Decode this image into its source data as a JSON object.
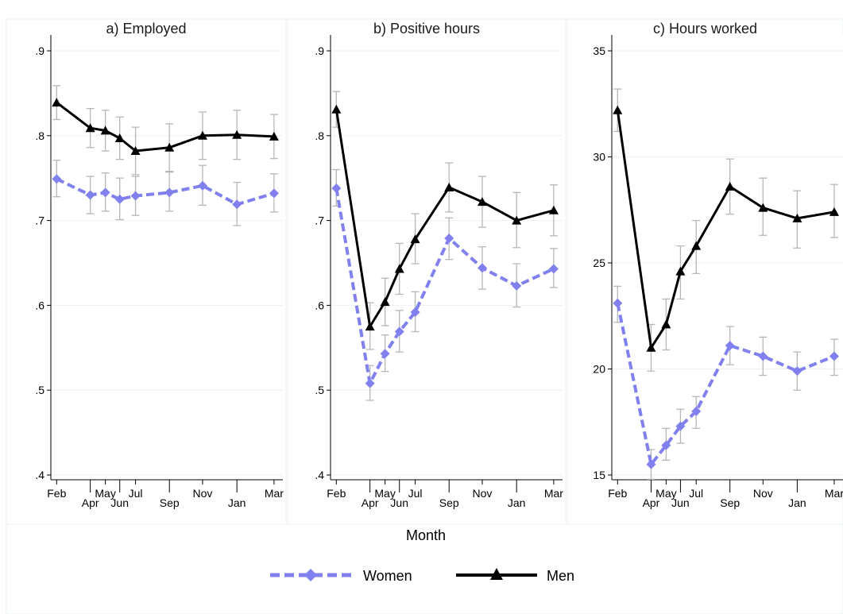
{
  "figure": {
    "xlabel": "Month",
    "legend": [
      {
        "name": "Women",
        "color": "#8080ee",
        "marker": "diamond",
        "line": "dashed"
      },
      {
        "name": "Men",
        "color": "#000000",
        "marker": "triangle",
        "line": "solid"
      }
    ]
  },
  "chart_data": [
    {
      "type": "line",
      "title": "a) Employed",
      "x": [
        "Feb",
        "Apr",
        "May",
        "Jun",
        "Jul",
        "Sep",
        "Nov",
        "Jan",
        "Mar"
      ],
      "ylim": [
        0.4,
        0.9
      ],
      "yticks": [
        0.4,
        0.5,
        0.6,
        0.7,
        0.8,
        0.9
      ],
      "ytick_labels": [
        ".4",
        ".5",
        ".6",
        ".7",
        ".8",
        ".9"
      ],
      "grid": true,
      "series": [
        {
          "name": "Women",
          "values": [
            0.749,
            0.73,
            0.733,
            0.725,
            0.729,
            0.733,
            0.741,
            0.719,
            0.732
          ],
          "ci_low": [
            0.728,
            0.708,
            0.711,
            0.701,
            0.706,
            0.711,
            0.718,
            0.694,
            0.71
          ],
          "ci_high": [
            0.771,
            0.752,
            0.756,
            0.75,
            0.752,
            0.757,
            0.765,
            0.745,
            0.755
          ]
        },
        {
          "name": "Men",
          "values": [
            0.839,
            0.809,
            0.806,
            0.797,
            0.782,
            0.786,
            0.8,
            0.801,
            0.799
          ],
          "ci_low": [
            0.819,
            0.786,
            0.782,
            0.772,
            0.754,
            0.758,
            0.772,
            0.772,
            0.773
          ],
          "ci_high": [
            0.859,
            0.832,
            0.83,
            0.822,
            0.81,
            0.814,
            0.828,
            0.83,
            0.825
          ]
        }
      ]
    },
    {
      "type": "line",
      "title": "b) Positive hours",
      "x": [
        "Feb",
        "Apr",
        "May",
        "Jun",
        "Jul",
        "Sep",
        "Nov",
        "Jan",
        "Mar"
      ],
      "ylim": [
        0.4,
        0.9
      ],
      "yticks": [
        0.4,
        0.5,
        0.6,
        0.7,
        0.8,
        0.9
      ],
      "ytick_labels": [
        ".4",
        ".5",
        ".6",
        ".7",
        ".8",
        ".9"
      ],
      "grid": true,
      "series": [
        {
          "name": "Women",
          "values": [
            0.738,
            0.508,
            0.543,
            0.569,
            0.592,
            0.679,
            0.644,
            0.623,
            0.643
          ],
          "ci_low": [
            0.717,
            0.488,
            0.522,
            0.545,
            0.569,
            0.654,
            0.619,
            0.598,
            0.621
          ],
          "ci_high": [
            0.76,
            0.529,
            0.565,
            0.594,
            0.616,
            0.703,
            0.669,
            0.649,
            0.667
          ]
        },
        {
          "name": "Men",
          "values": [
            0.831,
            0.575,
            0.604,
            0.643,
            0.678,
            0.739,
            0.722,
            0.7,
            0.712
          ],
          "ci_low": [
            0.81,
            0.548,
            0.576,
            0.613,
            0.649,
            0.71,
            0.692,
            0.668,
            0.682
          ],
          "ci_high": [
            0.852,
            0.603,
            0.632,
            0.673,
            0.708,
            0.768,
            0.752,
            0.733,
            0.742
          ]
        }
      ]
    },
    {
      "type": "line",
      "title": "c) Hours worked",
      "x": [
        "Feb",
        "Apr",
        "May",
        "Jun",
        "Jul",
        "Sep",
        "Nov",
        "Jan",
        "Mar"
      ],
      "ylim": [
        15,
        35
      ],
      "yticks": [
        15,
        20,
        25,
        30,
        35
      ],
      "ytick_labels": [
        "15",
        "20",
        "25",
        "30",
        "35"
      ],
      "grid": true,
      "series": [
        {
          "name": "Women",
          "values": [
            23.1,
            15.5,
            16.4,
            17.3,
            18.0,
            21.1,
            20.6,
            19.9,
            20.6
          ],
          "ci_low": [
            22.2,
            14.8,
            15.7,
            16.5,
            17.2,
            20.2,
            19.7,
            19.0,
            19.7
          ],
          "ci_high": [
            23.9,
            16.2,
            17.2,
            18.1,
            18.7,
            22.0,
            21.5,
            20.8,
            21.4
          ]
        },
        {
          "name": "Men",
          "values": [
            32.2,
            21.0,
            22.1,
            24.6,
            25.8,
            28.6,
            27.6,
            27.1,
            27.4
          ],
          "ci_low": [
            31.2,
            19.9,
            20.9,
            23.3,
            24.5,
            27.3,
            26.3,
            25.7,
            26.2
          ],
          "ci_high": [
            33.2,
            22.1,
            23.3,
            25.8,
            27.0,
            29.9,
            29.0,
            28.4,
            28.7
          ]
        }
      ]
    }
  ]
}
